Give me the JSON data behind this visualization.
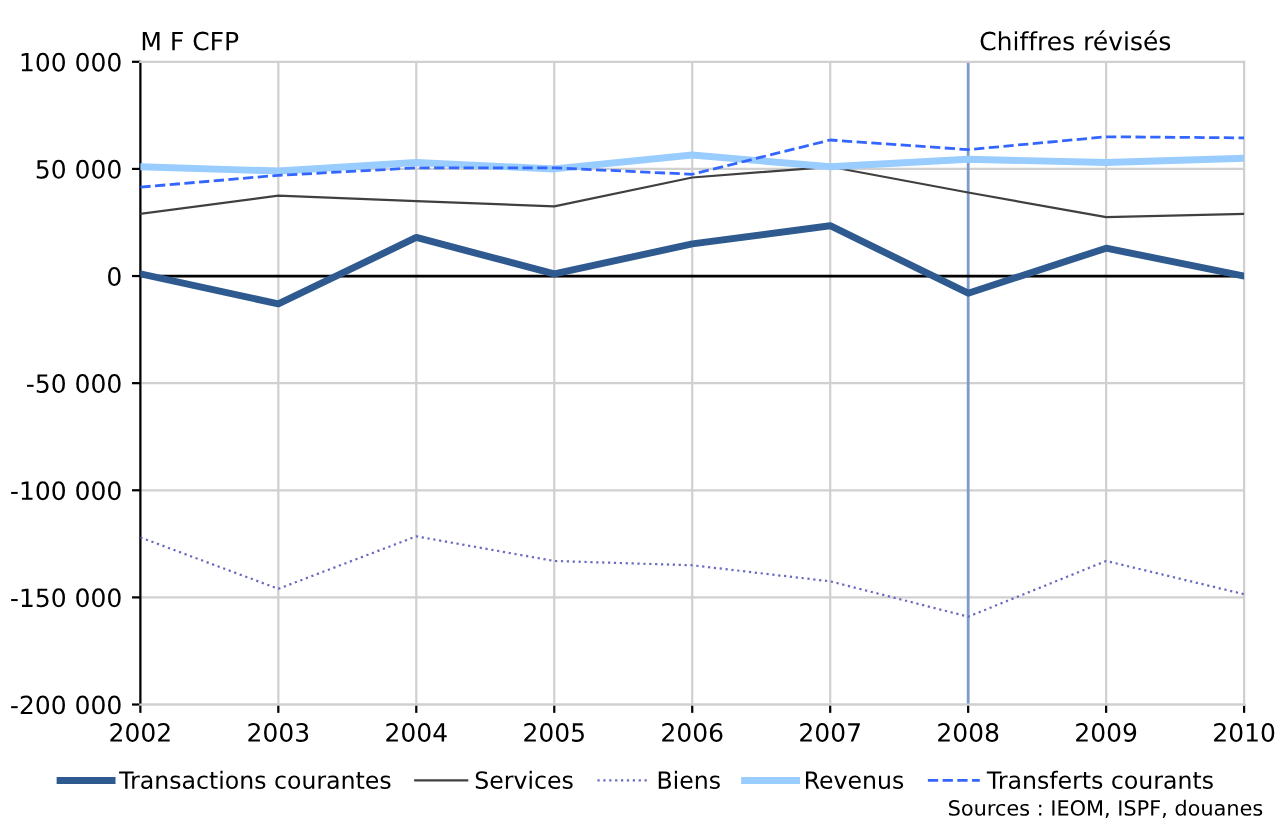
{
  "chart_data": {
    "type": "line",
    "ylabel": "M F CFP",
    "x": [
      2002,
      2003,
      2004,
      2005,
      2006,
      2007,
      2008,
      2009,
      2010
    ],
    "series": [
      {
        "name": "Transactions courantes",
        "color": "#2e5a8f",
        "line_style": "solid",
        "values": [
          1000,
          -13000,
          18000,
          1000,
          15000,
          23500,
          -8000,
          13000,
          0
        ]
      },
      {
        "name": "Services",
        "color": "#404040",
        "line_style": "solid",
        "values": [
          29000,
          37500,
          35000,
          32500,
          46000,
          51000,
          39000,
          27500,
          29000
        ]
      },
      {
        "name": "Biens",
        "color": "#6a6ac0",
        "line_style": "dotted",
        "values": [
          -122000,
          -146000,
          -121500,
          -133000,
          -135000,
          -142500,
          -159000,
          -133000,
          -148500
        ]
      },
      {
        "name": "Revenus",
        "color": "#99ccff",
        "line_style": "solid",
        "values": [
          51000,
          49000,
          53000,
          50000,
          56500,
          51000,
          54500,
          53000,
          55000
        ]
      },
      {
        "name": "Transferts courants",
        "color": "#3366ff",
        "line_style": "dashed",
        "values": [
          41500,
          47000,
          50500,
          50500,
          47500,
          63500,
          59000,
          65000,
          64500
        ]
      }
    ],
    "xlim": [
      2002,
      2010
    ],
    "xticks": [
      2002,
      2003,
      2004,
      2005,
      2006,
      2007,
      2008,
      2009,
      2010
    ],
    "ylim": [
      -200000,
      100000
    ],
    "yticks": [
      {
        "value": -200000,
        "label": "-200 000"
      },
      {
        "value": -150000,
        "label": "-150 000"
      },
      {
        "value": -100000,
        "label": "-100 000"
      },
      {
        "value": -50000,
        "label": "-50 000"
      },
      {
        "value": 0,
        "label": "0"
      },
      {
        "value": 50000,
        "label": "50 000"
      },
      {
        "value": 100000,
        "label": "100 000"
      }
    ],
    "ref_lines": [
      {
        "axis": "x",
        "value": 2008,
        "label": "Chiffres révisés",
        "color": "#7f9cc8"
      },
      {
        "axis": "y",
        "value": 0,
        "label": null,
        "color": "#000000"
      }
    ],
    "grid": true,
    "legend": "bottom",
    "marker": "none",
    "annotations": [
      "Sources : IEOM, ISPF, douanes"
    ]
  }
}
